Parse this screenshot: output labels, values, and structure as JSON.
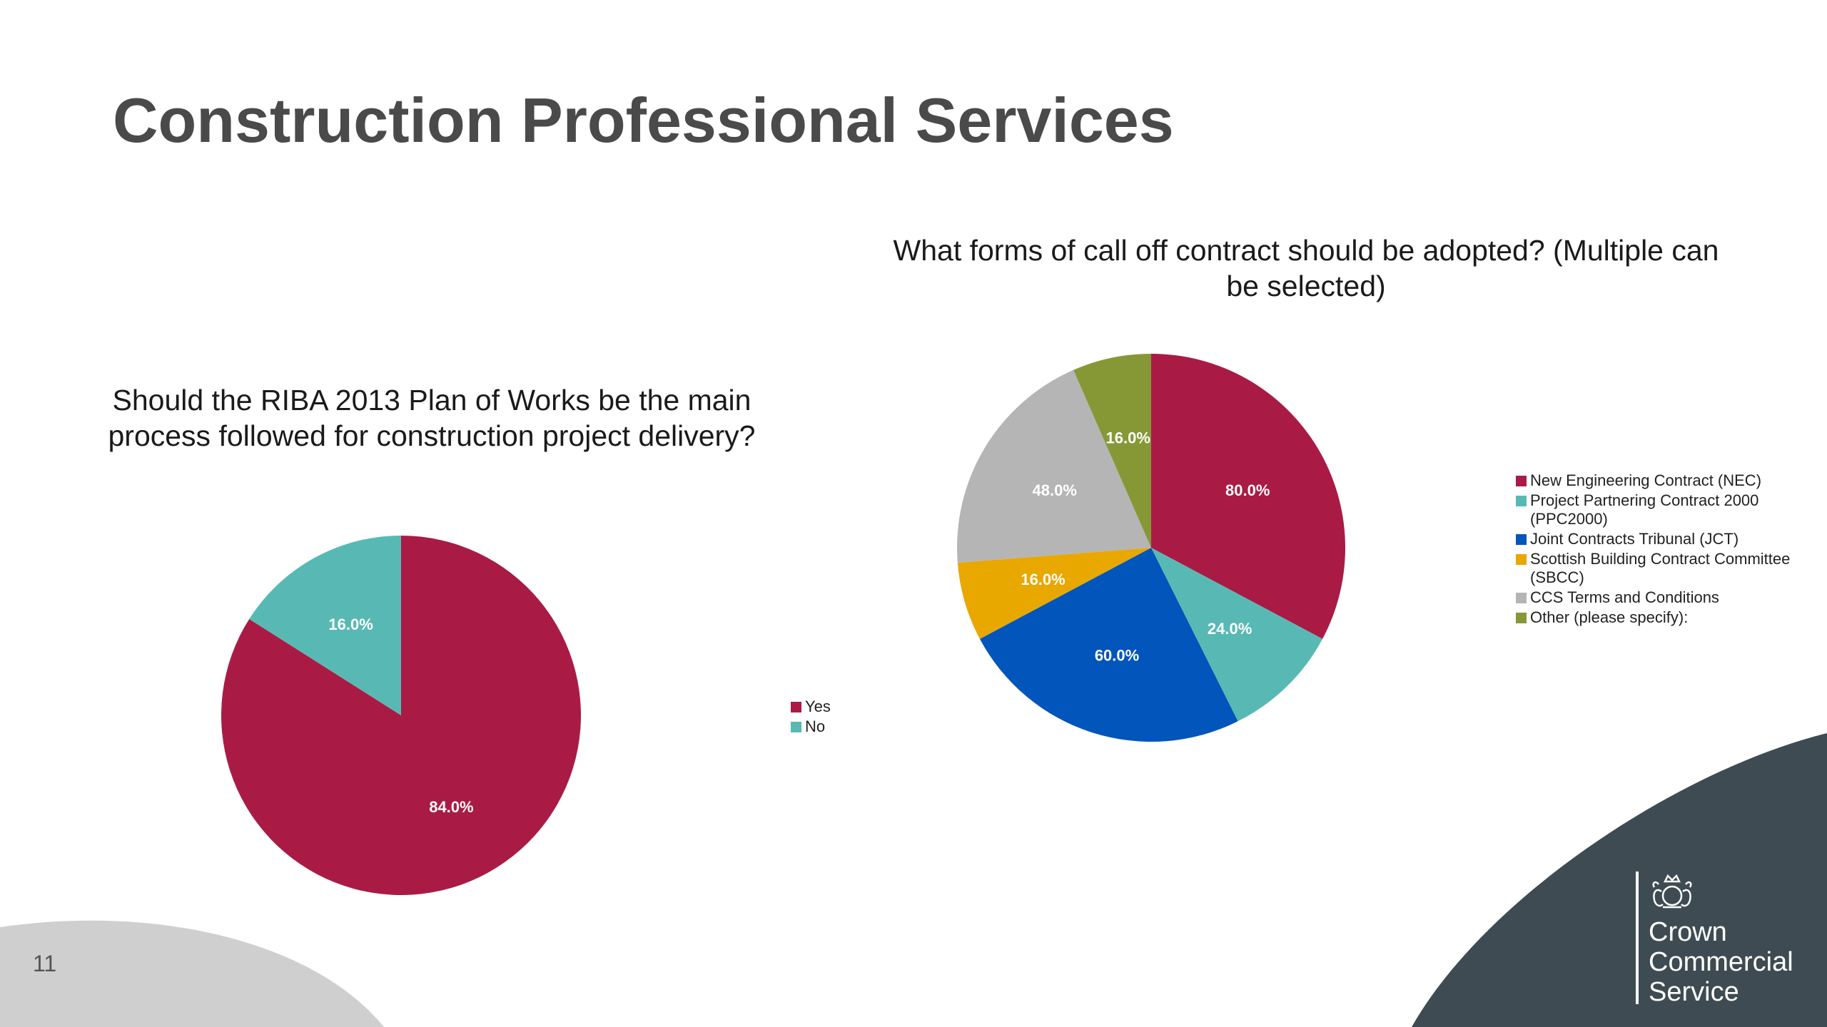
{
  "page": {
    "title": "Construction Professional Services",
    "page_number": "11"
  },
  "brand": {
    "line1": "Crown",
    "line2": "Commercial",
    "line3": "Service"
  },
  "colors": {
    "title": "#4a4a4a",
    "crimson": "#a91b45",
    "teal": "#58b9b4",
    "blue": "#0255bb",
    "amber": "#e8a800",
    "gray": "#b5b5b5",
    "olive": "#869836",
    "dark_slate": "#3e4b52",
    "light_gray_shape": "#cfcfcf"
  },
  "chart_data": [
    {
      "type": "pie",
      "title": "Should the RIBA 2013 Plan of Works be the main process followed for construction project delivery?",
      "categories": [
        "Yes",
        "No"
      ],
      "values": [
        84.0,
        16.0
      ],
      "labels": [
        "84.0%",
        "16.0%"
      ],
      "colors": [
        "#a91b45",
        "#58b9b4"
      ],
      "legend": "right"
    },
    {
      "type": "pie",
      "title": "What forms of call off contract should be adopted? (Multiple can be selected)",
      "categories": [
        "New Engineering Contract (NEC)",
        "Project Partnering Contract 2000 (PPC2000)",
        "Joint Contracts Tribunal (JCT)",
        "Scottish Building Contract Committee (SBCC)",
        "CCS Terms and Conditions",
        "Other (please specify):"
      ],
      "values": [
        80.0,
        24.0,
        60.0,
        16.0,
        48.0,
        16.0
      ],
      "labels": [
        "80.0%",
        "24.0%",
        "60.0%",
        "16.0%",
        "48.0%",
        "16.0%"
      ],
      "colors": [
        "#a91b45",
        "#58b9b4",
        "#0255bb",
        "#e8a800",
        "#b5b5b5",
        "#869836"
      ],
      "legend": "right"
    }
  ]
}
